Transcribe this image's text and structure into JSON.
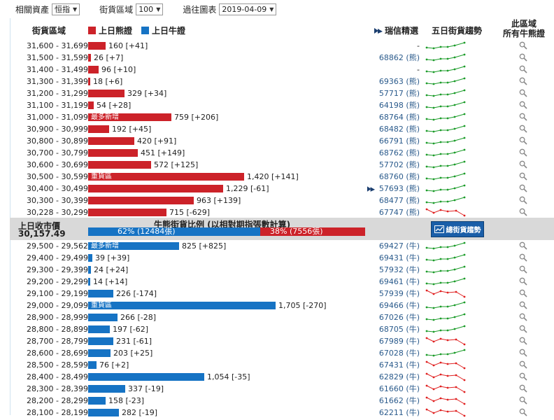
{
  "filters": {
    "asset_label": "相關資產",
    "asset_value": "恒指",
    "range_label": "街貨區域",
    "range_value": "100",
    "date_label": "過往圖表",
    "date_value": "2019-04-09"
  },
  "header": {
    "range_col": "街貨區域",
    "bear_legend": "上日熊證",
    "bull_legend": "上日牛證",
    "ws_col": "瑞信精選",
    "trend_col": "五日街貨趨勢",
    "all_col_line1": "此區域",
    "all_col_line2": "所有牛熊證"
  },
  "colors": {
    "bear": "#cc2229",
    "bull": "#1673c4",
    "trend_up": "#1c9c2a",
    "trend_down": "#e02020",
    "band": "#d9d9d9"
  },
  "bear_rows": [
    {
      "range": "31,600 - 31,699",
      "value": 160,
      "text": "160 [+41]",
      "ws": "-",
      "trend": "up",
      "tag": ""
    },
    {
      "range": "31,500 - 31,599",
      "value": 26,
      "text": "26 [+7]",
      "ws": "68862 (熊)",
      "trend": "up",
      "tag": ""
    },
    {
      "range": "31,400 - 31,499",
      "value": 96,
      "text": "96 [+10]",
      "ws": "-",
      "trend": "up",
      "tag": ""
    },
    {
      "range": "31,300 - 31,399",
      "value": 18,
      "text": "18 [+6]",
      "ws": "69363 (熊)",
      "trend": "up",
      "tag": ""
    },
    {
      "range": "31,200 - 31,299",
      "value": 329,
      "text": "329 [+34]",
      "ws": "57717 (熊)",
      "trend": "up",
      "tag": ""
    },
    {
      "range": "31,100 - 31,199",
      "value": 54,
      "text": "54 [+28]",
      "ws": "64198 (熊)",
      "trend": "up",
      "tag": ""
    },
    {
      "range": "31,000 - 31,099",
      "value": 759,
      "text": "759 [+206]",
      "ws": "68764 (熊)",
      "trend": "up",
      "tag": "最多新增"
    },
    {
      "range": "30,900 - 30,999",
      "value": 192,
      "text": "192 [+45]",
      "ws": "68482 (熊)",
      "trend": "up",
      "tag": ""
    },
    {
      "range": "30,800 - 30,899",
      "value": 420,
      "text": "420 [+91]",
      "ws": "66791 (熊)",
      "trend": "up",
      "tag": ""
    },
    {
      "range": "30,700 - 30,799",
      "value": 451,
      "text": "451 [+149]",
      "ws": "68762 (熊)",
      "trend": "up",
      "tag": ""
    },
    {
      "range": "30,600 - 30,699",
      "value": 572,
      "text": "572 [+125]",
      "ws": "57702 (熊)",
      "trend": "up",
      "tag": ""
    },
    {
      "range": "30,500 - 30,599",
      "value": 1420,
      "text": "1,420 [+141]",
      "ws": "68760 (熊)",
      "trend": "up",
      "tag": "重貨區"
    },
    {
      "range": "30,400 - 30,499",
      "value": 1229,
      "text": "1,229 [-61]",
      "ws": "57693 (熊)",
      "trend": "up",
      "tag": "",
      "ws_icon": true
    },
    {
      "range": "30,300 - 30,399",
      "value": 963,
      "text": "963 [+139]",
      "ws": "68477 (熊)",
      "trend": "up",
      "tag": ""
    },
    {
      "range": "30,228 - 30,299",
      "value": 715,
      "text": "715 [-629]",
      "ws": "67747 (熊)",
      "trend": "down",
      "tag": ""
    }
  ],
  "midband": {
    "close_label": "上日收市價",
    "close_value": "30,157.49",
    "ratio_title": "牛熊街貨比例 (以相對期指張數計算)",
    "bull_pct": 62,
    "bull_text": "62% (12484張)",
    "bear_pct": 38,
    "bear_text": "38% (7556張)",
    "trend_button": "總街貨趨勢"
  },
  "bull_rows": [
    {
      "range": "29,500 - 29,562",
      "value": 825,
      "text": "825 [+825]",
      "ws": "69427 (牛)",
      "trend": "up",
      "tag": "最多新增"
    },
    {
      "range": "29,400 - 29,499",
      "value": 39,
      "text": "39 [+39]",
      "ws": "69431 (牛)",
      "trend": "up",
      "tag": ""
    },
    {
      "range": "29,300 - 29,399",
      "value": 24,
      "text": "24 [+24]",
      "ws": "57932 (牛)",
      "trend": "up",
      "tag": ""
    },
    {
      "range": "29,200 - 29,299",
      "value": 14,
      "text": "14 [+14]",
      "ws": "69461 (牛)",
      "trend": "up",
      "tag": ""
    },
    {
      "range": "29,100 - 29,199",
      "value": 226,
      "text": "226 [-174]",
      "ws": "57939 (牛)",
      "trend": "down",
      "tag": ""
    },
    {
      "range": "29,000 - 29,099",
      "value": 1705,
      "text": "1,705 [-270]",
      "ws": "69466 (牛)",
      "trend": "up",
      "tag": "重貨區"
    },
    {
      "range": "28,900 - 28,999",
      "value": 266,
      "text": "266 [-28]",
      "ws": "67026 (牛)",
      "trend": "up",
      "tag": ""
    },
    {
      "range": "28,800 - 28,899",
      "value": 197,
      "text": "197 [-62]",
      "ws": "68705 (牛)",
      "trend": "up",
      "tag": ""
    },
    {
      "range": "28,700 - 28,799",
      "value": 231,
      "text": "231 [-61]",
      "ws": "67989 (牛)",
      "trend": "down",
      "tag": ""
    },
    {
      "range": "28,600 - 28,699",
      "value": 203,
      "text": "203 [+25]",
      "ws": "67028 (牛)",
      "trend": "up",
      "tag": ""
    },
    {
      "range": "28,500 - 28,599",
      "value": 76,
      "text": "76 [+2]",
      "ws": "67431 (牛)",
      "trend": "down",
      "tag": ""
    },
    {
      "range": "28,400 - 28,499",
      "value": 1054,
      "text": "1,054 [-35]",
      "ws": "62829 (牛)",
      "trend": "down",
      "tag": ""
    },
    {
      "range": "28,300 - 28,399",
      "value": 337,
      "text": "337 [-19]",
      "ws": "61660 (牛)",
      "trend": "down",
      "tag": ""
    },
    {
      "range": "28,200 - 28,299",
      "value": 158,
      "text": "158 [-23]",
      "ws": "61662 (牛)",
      "trend": "down",
      "tag": ""
    },
    {
      "range": "28,100 - 28,199",
      "value": 282,
      "text": "282 [-19]",
      "ws": "62211 (牛)",
      "trend": "down",
      "tag": ""
    }
  ]
}
